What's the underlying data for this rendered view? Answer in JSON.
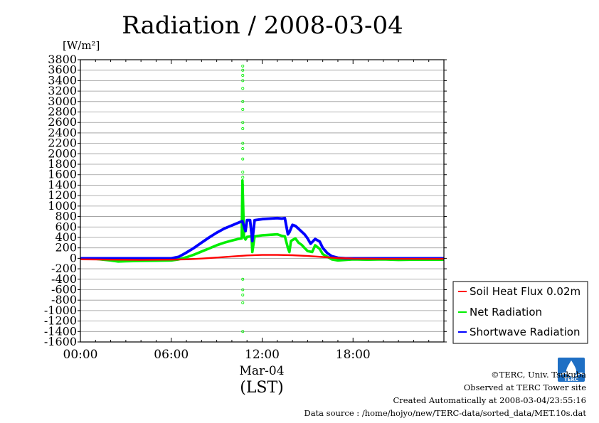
{
  "chart_data": {
    "type": "line",
    "title": "Radiation / 2008-03-04",
    "ylabel": "[W/m²]",
    "ylim": [
      -1600,
      3800
    ],
    "yticks": [
      3800,
      3600,
      3400,
      3200,
      3000,
      2800,
      2600,
      2400,
      2200,
      2000,
      1800,
      1600,
      1400,
      1200,
      1000,
      800,
      600,
      400,
      200,
      0,
      -200,
      -400,
      -600,
      -800,
      -1000,
      -1200,
      -1400,
      -1600
    ],
    "xlim": [
      0,
      24
    ],
    "xticks": [
      {
        "hour": 0,
        "label": "00:00"
      },
      {
        "hour": 6,
        "label": "06:00"
      },
      {
        "hour": 12,
        "label": "12:00"
      },
      {
        "hour": 18,
        "label": "18:00"
      }
    ],
    "xlabel_date": "Mar-04",
    "xlabel_unit": "(LST)",
    "grid": true,
    "legend_position": "right-bottom",
    "series": [
      {
        "name": "Soil Heat Flux 0.02m",
        "color": "#ff0000",
        "x": [
          0,
          2,
          4,
          6,
          7,
          8,
          9,
          10,
          11,
          12,
          13,
          14,
          15,
          16,
          17,
          18,
          20,
          22,
          24
        ],
        "y": [
          -20,
          -25,
          -30,
          -25,
          -20,
          -5,
          15,
          35,
          55,
          65,
          65,
          60,
          45,
          25,
          5,
          -5,
          -10,
          -10,
          -10
        ]
      },
      {
        "name": "Net Radiation",
        "color": "#00ee00",
        "x": [
          0,
          1,
          2,
          2.5,
          3,
          4,
          5,
          6,
          6.5,
          7,
          7.5,
          8,
          8.5,
          9,
          9.5,
          10,
          10.4,
          10.65,
          10.7,
          10.8,
          10.9,
          11,
          11.3,
          11.35,
          11.5,
          12,
          12.5,
          13,
          13.3,
          13.5,
          13.7,
          13.8,
          13.9,
          14,
          14.2,
          14.4,
          14.6,
          14.8,
          15,
          15.3,
          15.5,
          15.8,
          16,
          16.3,
          16.6,
          17,
          17.5,
          18,
          19,
          20,
          21,
          22,
          23,
          24
        ],
        "y": [
          0,
          -10,
          -40,
          -60,
          -55,
          -50,
          -45,
          -40,
          -20,
          20,
          70,
          130,
          190,
          250,
          300,
          340,
          370,
          380,
          1490,
          410,
          360,
          410,
          420,
          120,
          420,
          440,
          450,
          460,
          430,
          420,
          200,
          120,
          330,
          350,
          380,
          300,
          260,
          200,
          140,
          120,
          250,
          180,
          80,
          30,
          -20,
          -40,
          -30,
          -20,
          -25,
          -20,
          -30,
          -25,
          -25,
          -25
        ]
      },
      {
        "name": "Shortwave Radiation",
        "color": "#0000ff",
        "x": [
          0,
          2,
          4,
          6,
          6.5,
          7,
          7.5,
          8,
          8.5,
          9,
          9.5,
          10,
          10.5,
          10.7,
          10.9,
          11,
          11.2,
          11.35,
          11.5,
          12,
          12.5,
          13,
          13.3,
          13.5,
          13.7,
          13.8,
          14,
          14.2,
          14.5,
          14.8,
          15,
          15.2,
          15.5,
          15.8,
          16,
          16.3,
          16.6,
          17,
          17.5,
          18,
          20,
          22,
          24
        ],
        "y": [
          0,
          0,
          0,
          0,
          30,
          110,
          200,
          300,
          400,
          490,
          570,
          630,
          690,
          710,
          520,
          730,
          730,
          330,
          730,
          750,
          760,
          770,
          760,
          770,
          460,
          500,
          640,
          620,
          540,
          460,
          380,
          280,
          370,
          320,
          200,
          100,
          40,
          10,
          0,
          0,
          0,
          0,
          0
        ]
      }
    ],
    "scatter_spikes": {
      "color": "#00ee00",
      "hour": 10.72,
      "values": [
        3680,
        3600,
        3500,
        3400,
        3250,
        3000,
        2850,
        2600,
        2480,
        2200,
        2100,
        1900,
        1650,
        1550,
        1400,
        1200,
        1050,
        -400,
        -600,
        -700,
        -850,
        -1400
      ]
    }
  },
  "credits": {
    "line1": "©TERC, Univ. Tsukuba",
    "line2": "Observed at TERC Tower site",
    "line3": "Created Automatically at 2008-03-04/23:55:16",
    "line4": "Data source : /home/hojyo/new/TERC-data/sorted_data/MET.10s.dat"
  },
  "logo": {
    "text": "TERC",
    "color": "#1e6fc4"
  }
}
